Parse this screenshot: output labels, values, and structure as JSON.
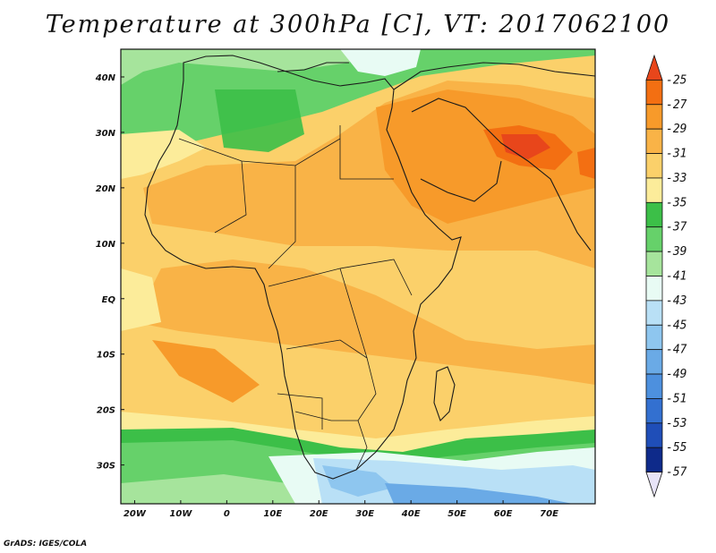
{
  "title": "Temperature at 300hPa [C], VT: 2017062100",
  "credit": "GrADS: IGES/COLA",
  "map": {
    "lon_range": [
      -23,
      80
    ],
    "lat_range": [
      -37,
      45
    ],
    "x_ticks": [
      "20W",
      "10W",
      "0",
      "10E",
      "20E",
      "30E",
      "40E",
      "50E",
      "60E",
      "70E"
    ],
    "x_tick_values": [
      -20,
      -10,
      0,
      10,
      20,
      30,
      40,
      50,
      60,
      70
    ],
    "y_ticks": [
      "40N",
      "30N",
      "20N",
      "10N",
      "EQ",
      "10S",
      "20S",
      "30S"
    ],
    "y_tick_values": [
      40,
      30,
      20,
      10,
      0,
      -10,
      -20,
      -30
    ]
  },
  "colorbar": {
    "labels": [
      "-25",
      "-27",
      "-29",
      "-31",
      "-33",
      "-35",
      "-37",
      "-39",
      "-41",
      "-43",
      "-45",
      "-47",
      "-49",
      "-51",
      "-53",
      "-55",
      "-57"
    ],
    "colors": [
      "#e8461b",
      "#f36f12",
      "#f79a2a",
      "#f9b347",
      "#fbd06a",
      "#fcec9a",
      "#3cbf48",
      "#66d16a",
      "#a6e49c",
      "#e8fbf4",
      "#b9e0f6",
      "#8ec6ef",
      "#6aaae6",
      "#4d90de",
      "#3370d0",
      "#1f4eb8",
      "#0e2a8a",
      "#e8e4f8"
    ]
  }
}
